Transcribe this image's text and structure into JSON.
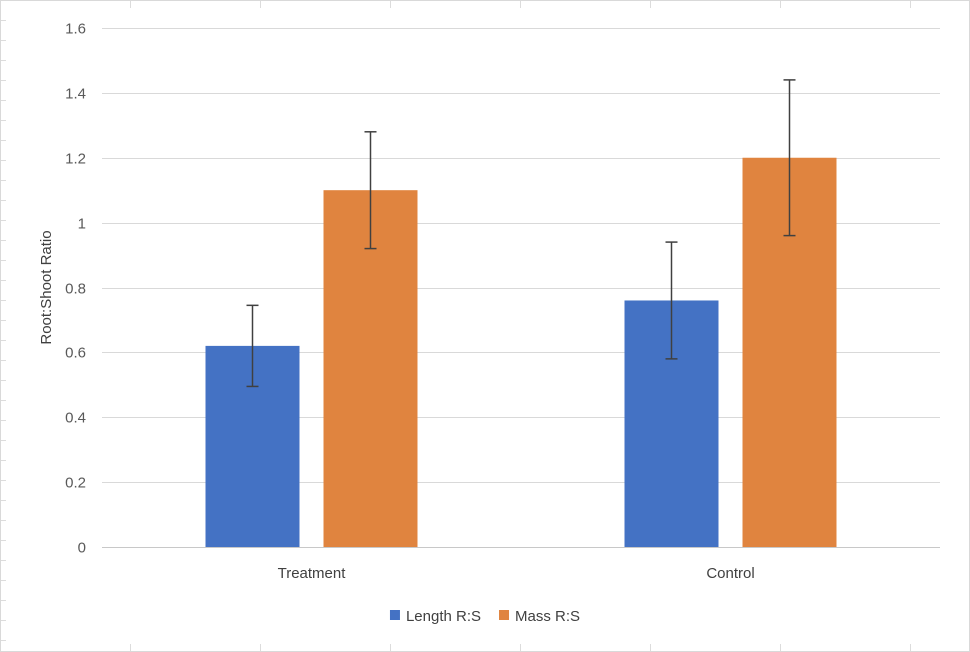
{
  "chart_data": {
    "type": "bar",
    "categories": [
      "Treatment",
      "Control"
    ],
    "series": [
      {
        "name": "Length R:S",
        "color": "#4472C4",
        "values": [
          0.62,
          0.76
        ],
        "error": [
          0.125,
          0.18
        ]
      },
      {
        "name": "Mass R:S",
        "color": "#E0843F",
        "values": [
          1.1,
          1.2
        ],
        "error": [
          0.18,
          0.24
        ]
      }
    ],
    "title": "",
    "xlabel": "",
    "ylabel": "Root:Shoot Ratio",
    "ylim": [
      0,
      1.6
    ],
    "yticks": [
      "0",
      "0.2",
      "0.4",
      "0.6",
      "0.8",
      "1",
      "1.2",
      "1.4",
      "1.6"
    ],
    "grid": true,
    "legend_position": "bottom-center"
  }
}
